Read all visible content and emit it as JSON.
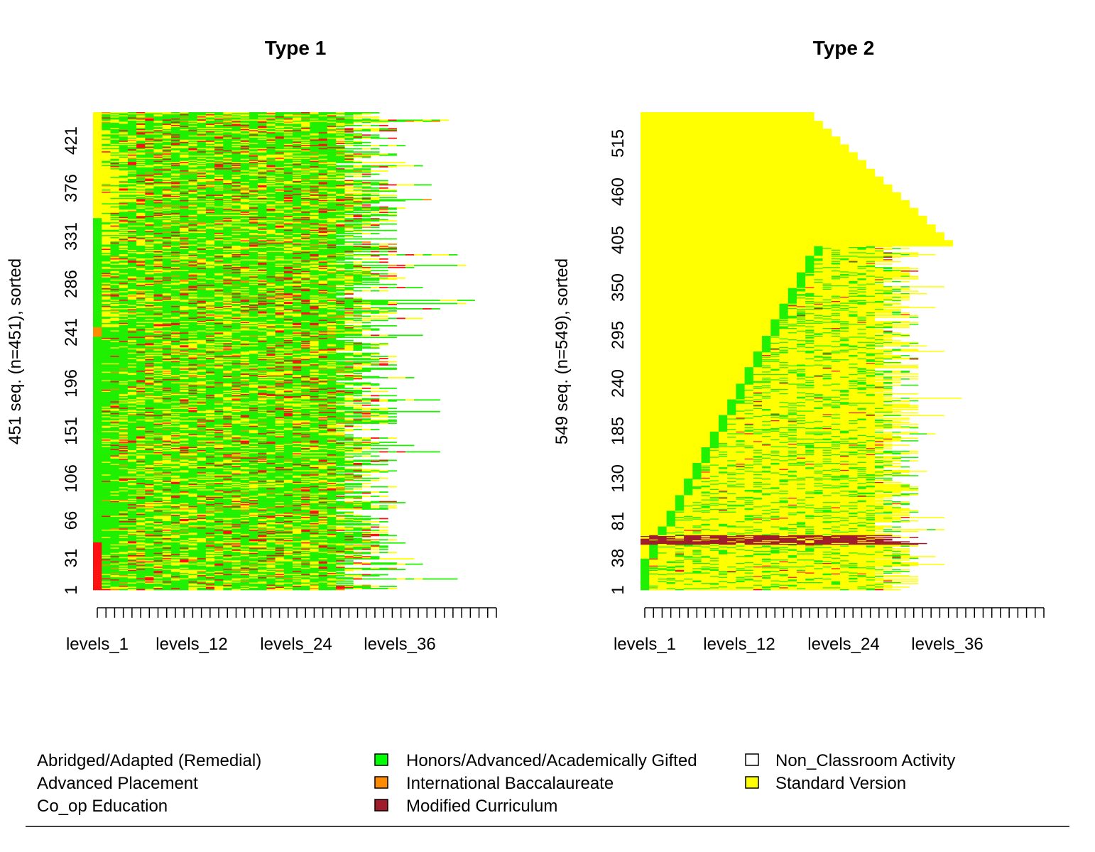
{
  "chart_data": [
    {
      "type": "heatmap",
      "title": "Type 1",
      "ylabel": "451 seq. (n=451), sorted",
      "n": 451,
      "ytick_labels": [
        "1",
        "31",
        "66",
        "106",
        "151",
        "196",
        "241",
        "286",
        "331",
        "376",
        "421"
      ],
      "xtick_labels": [
        "levels_1",
        "levels_12",
        "levels_24",
        "levels_36"
      ],
      "x_positions": 46,
      "max_length": 46
    },
    {
      "type": "heatmap",
      "title": "Type 2",
      "ylabel": "549 seq. (n=549), sorted",
      "n": 549,
      "ytick_labels": [
        "1",
        "38",
        "81",
        "130",
        "185",
        "240",
        "295",
        "350",
        "405",
        "460",
        "515"
      ],
      "xtick_labels": [
        "levels_1",
        "levels_12",
        "levels_24",
        "levels_36"
      ],
      "x_positions": 46,
      "max_length": 39
    }
  ],
  "legend": {
    "items": [
      {
        "label": "Abridged/Adapted (Remedial)",
        "color": "#ff0000"
      },
      {
        "label": "Advanced Placement",
        "color": "#ff8c00"
      },
      {
        "label": "Co_op Education",
        "color": "#ffffff"
      },
      {
        "label": "Honors/Advanced/Academically Gifted",
        "color": "#00ff00"
      },
      {
        "label": "International Baccalaureate",
        "color": "#ff8c00"
      },
      {
        "label": "Modified Curriculum",
        "color": "#a01c2a"
      },
      {
        "label": "Non_Classroom Activity",
        "color": "#ffffff"
      },
      {
        "label": "Standard Version",
        "color": "#ffff00"
      }
    ]
  }
}
